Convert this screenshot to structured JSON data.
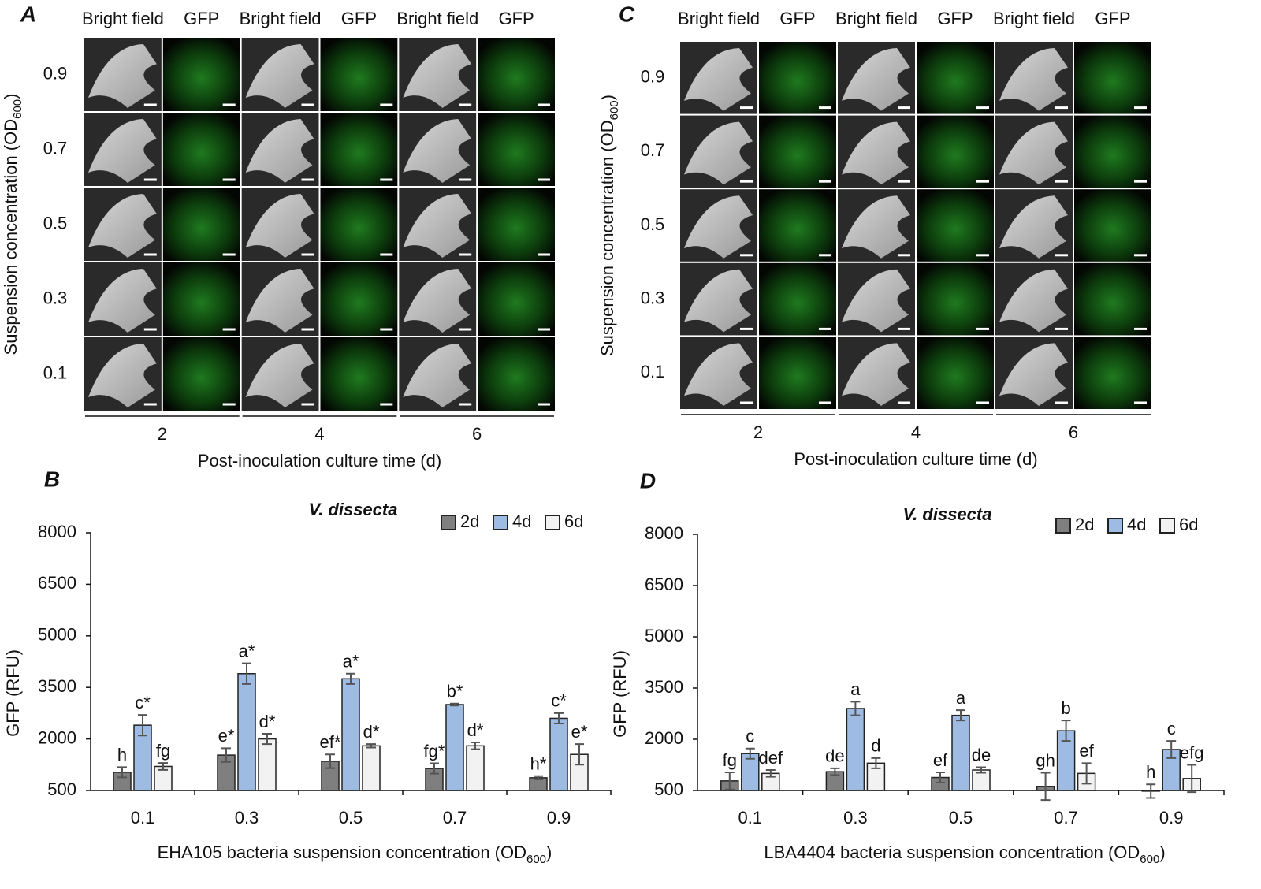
{
  "panels": [
    {
      "letter": "A",
      "columns": [
        "Bright field",
        "GFP",
        "Bright field",
        "GFP",
        "Bright field",
        "GFP"
      ],
      "rows": [
        "0.9",
        "0.7",
        "0.5",
        "0.3",
        "0.1"
      ],
      "ylabel": "Suspension concentration (OD",
      "ylabel_sub": "600",
      "ylabel_end": ")",
      "groups": [
        "2",
        "4",
        "6"
      ],
      "xlabel": "Post-inoculation culture time (d)"
    },
    {
      "letter": "C",
      "columns": [
        "Bright field",
        "GFP",
        "Bright field",
        "GFP",
        "Bright field",
        "GFP"
      ],
      "rows": [
        "0.9",
        "0.7",
        "0.5",
        "0.3",
        "0.1"
      ],
      "ylabel": "Suspension concentration (OD",
      "ylabel_sub": "600",
      "ylabel_end": ")",
      "groups": [
        "2",
        "4",
        "6"
      ],
      "xlabel": "Post-inoculation culture time (d)"
    }
  ],
  "chart_data": [
    {
      "type": "bar",
      "panel": "B",
      "title": "V. dissecta",
      "ylabel": "GFP (RFU)",
      "xlabel": "EHA105 bacteria suspension concentration (OD",
      "xlabel_sub": "600",
      "xlabel_end": ")",
      "categories": [
        "0.1",
        "0.3",
        "0.5",
        "0.7",
        "0.9"
      ],
      "ylim": [
        500,
        8000
      ],
      "yticks": [
        500,
        2000,
        3500,
        5000,
        6500,
        8000
      ],
      "series": [
        {
          "name": "2d",
          "color": "#7f7f7f",
          "values": [
            1030,
            1530,
            1350,
            1140,
            870
          ],
          "errors": [
            150,
            200,
            200,
            150,
            50
          ],
          "letters": [
            "h",
            "e*",
            "ef*",
            "fg*",
            "h*"
          ]
        },
        {
          "name": "4d",
          "color": "#9dbbe3",
          "values": [
            2400,
            3900,
            3750,
            3000,
            2600
          ],
          "errors": [
            300,
            300,
            150,
            30,
            150
          ],
          "letters": [
            "c*",
            "a*",
            "a*",
            "b*",
            "c*"
          ]
        },
        {
          "name": "6d",
          "color": "#f2f2f2",
          "values": [
            1200,
            2000,
            1800,
            1800,
            1550
          ],
          "errors": [
            100,
            150,
            50,
            100,
            300
          ],
          "letters": [
            "fg",
            "d*",
            "d*",
            "d*",
            "e*"
          ]
        }
      ]
    },
    {
      "type": "bar",
      "panel": "D",
      "title": "V. dissecta",
      "ylabel": "GFP (RFU)",
      "xlabel": "LBA4404 bacteria suspension concentration (OD",
      "xlabel_sub": "600",
      "xlabel_end": ")",
      "categories": [
        "0.1",
        "0.3",
        "0.5",
        "0.7",
        "0.9"
      ],
      "ylim": [
        500,
        8000
      ],
      "yticks": [
        500,
        2000,
        3500,
        5000,
        6500,
        8000
      ],
      "series": [
        {
          "name": "2d",
          "color": "#7f7f7f",
          "values": [
            780,
            1050,
            880,
            620,
            480
          ],
          "errors": [
            250,
            100,
            150,
            400,
            200
          ],
          "letters": [
            "fg",
            "de",
            "ef",
            "gh",
            "h"
          ]
        },
        {
          "name": "4d",
          "color": "#9dbbe3",
          "values": [
            1580,
            2900,
            2700,
            2250,
            1700
          ],
          "errors": [
            150,
            200,
            150,
            300,
            250
          ],
          "letters": [
            "c",
            "a",
            "a",
            "b",
            "c"
          ]
        },
        {
          "name": "6d",
          "color": "#f2f2f2",
          "values": [
            1000,
            1300,
            1100,
            1000,
            850
          ],
          "errors": [
            100,
            150,
            80,
            300,
            400
          ],
          "letters": [
            "def",
            "d",
            "de",
            "ef",
            "efg"
          ]
        }
      ]
    }
  ]
}
